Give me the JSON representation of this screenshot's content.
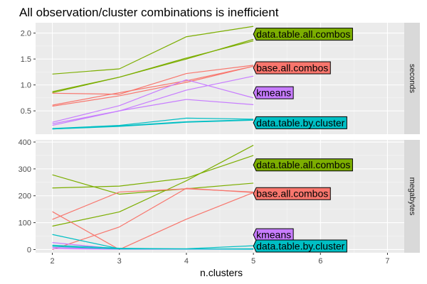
{
  "chart_data": {
    "type": "line",
    "title": "All observation/cluster combinations is inefficient",
    "xlabel": "n.clusters",
    "x_ticks": [
      2,
      3,
      4,
      5,
      6,
      7
    ],
    "xlim": [
      1.75,
      7.25
    ],
    "colors": {
      "base.all.combos": "#F8766D",
      "data.table.all.combos": "#7CAE00",
      "data.table.by.cluster": "#00BFC4",
      "kmeans": "#C77CFF"
    },
    "label_order": [
      "data.table.all.combos",
      "base.all.combos",
      "kmeans",
      "data.table.by.cluster"
    ],
    "panels": [
      {
        "strip": "seconds",
        "ylim": [
          0.05,
          2.2
        ],
        "y_ticks": [
          0.5,
          1.0,
          1.5,
          2.0
        ],
        "y_tick_labels": [
          "0.5",
          "1.0",
          "1.5",
          "2.0"
        ],
        "labels": [
          {
            "text": "data.table.all.combos",
            "y": 1.98
          },
          {
            "text": "base.all.combos",
            "y": 1.33
          },
          {
            "text": "kmeans",
            "y": 0.85
          },
          {
            "text": "data.table.by.cluster",
            "y": 0.27
          }
        ],
        "series": [
          {
            "name": "data.table.all.combos",
            "values": [
              1.21,
              1.31,
              1.93,
              2.13
            ]
          },
          {
            "name": "data.table.all.combos",
            "values": [
              0.87,
              1.15,
              1.5,
              1.88
            ]
          },
          {
            "name": "data.table.all.combos",
            "values": [
              0.85,
              1.15,
              1.52,
              1.85
            ]
          },
          {
            "name": "base.all.combos",
            "values": [
              0.84,
              0.82,
              1.22,
              1.38
            ]
          },
          {
            "name": "base.all.combos",
            "values": [
              0.61,
              0.85,
              1.08,
              1.36
            ]
          },
          {
            "name": "base.all.combos",
            "values": [
              0.59,
              0.79,
              1.05,
              1.36
            ]
          },
          {
            "name": "kmeans",
            "values": [
              0.28,
              0.6,
              1.1,
              0.75
            ]
          },
          {
            "name": "kmeans",
            "values": [
              0.25,
              0.5,
              0.9,
              1.17
            ]
          },
          {
            "name": "kmeans",
            "values": [
              0.22,
              0.5,
              0.72,
              0.62
            ]
          },
          {
            "name": "data.table.by.cluster",
            "values": [
              0.16,
              0.22,
              0.36,
              0.34
            ]
          },
          {
            "name": "data.table.by.cluster",
            "values": [
              0.15,
              0.21,
              0.29,
              0.33
            ]
          },
          {
            "name": "data.table.by.cluster",
            "values": [
              0.15,
              0.2,
              0.28,
              0.32
            ]
          }
        ]
      },
      {
        "strip": "megabytes",
        "ylim": [
          -12,
          408
        ],
        "y_ticks": [
          0,
          100,
          200,
          300,
          400
        ],
        "y_tick_labels": [
          "0",
          "100",
          "200",
          "300",
          "400"
        ],
        "labels": [
          {
            "text": "data.table.all.combos",
            "y": 315
          },
          {
            "text": "base.all.combos",
            "y": 208
          },
          {
            "text": "kmeans",
            "y": 55
          },
          {
            "text": "data.table.by.cluster",
            "y": 13
          }
        ],
        "series": [
          {
            "name": "data.table.all.combos",
            "values": [
              278,
              206,
              226,
              247
            ]
          },
          {
            "name": "data.table.all.combos",
            "values": [
              229,
              236,
              266,
              350
            ]
          },
          {
            "name": "data.table.all.combos",
            "values": [
              87,
              140,
              256,
              388
            ]
          },
          {
            "name": "base.all.combos",
            "values": [
              141,
              0,
              113,
              212
            ]
          },
          {
            "name": "base.all.combos",
            "values": [
              112,
              214,
              226,
              214
            ]
          },
          {
            "name": "base.all.combos",
            "values": [
              0,
              84,
              228,
              212
            ]
          },
          {
            "name": "kmeans",
            "values": [
              26,
              2,
              2,
              2
            ]
          },
          {
            "name": "kmeans",
            "values": [
              8,
              2,
              2,
              2
            ]
          },
          {
            "name": "kmeans",
            "values": [
              3,
              1,
              1,
              1
            ]
          },
          {
            "name": "data.table.by.cluster",
            "values": [
              56,
              3,
              3,
              14
            ]
          },
          {
            "name": "data.table.by.cluster",
            "values": [
              16,
              5,
              2,
              3
            ]
          },
          {
            "name": "data.table.by.cluster",
            "values": [
              12,
              2,
              2,
              1
            ]
          }
        ]
      }
    ]
  }
}
